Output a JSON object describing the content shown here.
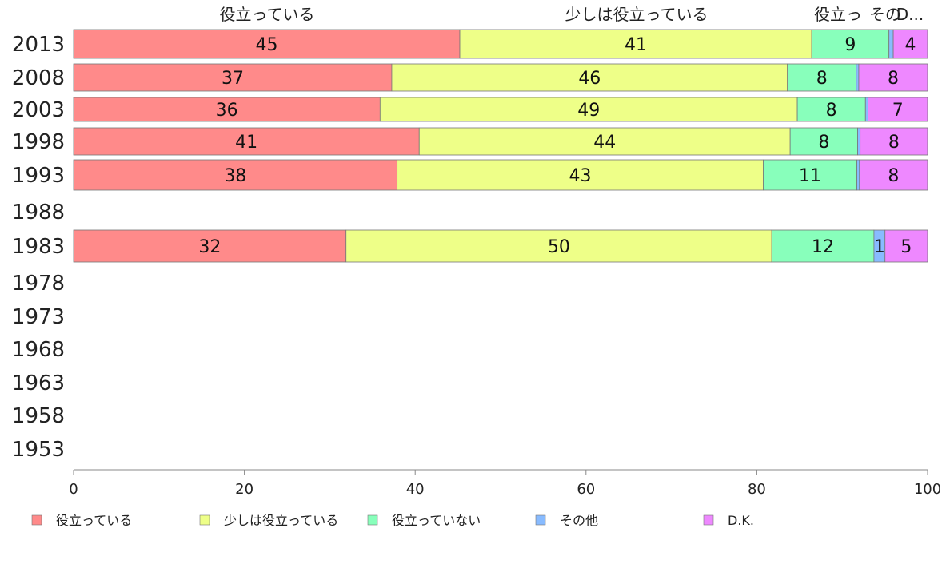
{
  "chart_data": {
    "type": "bar",
    "orientation": "horizontal",
    "stacked": true,
    "categories": [
      "2013",
      "2008",
      "2003",
      "1998",
      "1993",
      "1988",
      "1983",
      "1978",
      "1973",
      "1968",
      "1963",
      "1958",
      "1953"
    ],
    "series": [
      {
        "name": "役立っている",
        "color": "#ff8a8a",
        "values": [
          45,
          37,
          36,
          41,
          38,
          null,
          32,
          null,
          null,
          null,
          null,
          null,
          null
        ]
      },
      {
        "name": "少しは役立っている",
        "color": "#eeff88",
        "values": [
          41,
          46,
          49,
          44,
          43,
          null,
          50,
          null,
          null,
          null,
          null,
          null,
          null
        ]
      },
      {
        "name": "役立っていない",
        "color": "#88ffbb",
        "values": [
          9,
          8,
          8,
          8,
          11,
          null,
          12,
          null,
          null,
          null,
          null,
          null,
          null
        ]
      },
      {
        "name": "その他",
        "color": "#88bbff",
        "values": [
          0.5,
          0.3,
          0.3,
          0.3,
          0.3,
          null,
          1.3,
          null,
          null,
          null,
          null,
          null,
          null
        ]
      },
      {
        "name": "D.K.",
        "color": "#ee88ff",
        "values": [
          4,
          8,
          7,
          8,
          8,
          null,
          5,
          null,
          null,
          null,
          null,
          null,
          null
        ]
      }
    ],
    "data_labels": [
      [
        "45",
        "41",
        "9",
        "",
        "4"
      ],
      [
        "37",
        "46",
        "8",
        "",
        "8"
      ],
      [
        "36",
        "49",
        "8",
        "",
        "7"
      ],
      [
        "41",
        "44",
        "8",
        "",
        "8"
      ],
      [
        "38",
        "43",
        "11",
        "",
        "8"
      ],
      [
        "",
        "",
        "",
        "",
        ""
      ],
      [
        "32",
        "50",
        "12",
        "1",
        "5"
      ],
      [
        "",
        "",
        "",
        "",
        ""
      ],
      [
        "",
        "",
        "",
        "",
        ""
      ],
      [
        "",
        "",
        "",
        "",
        ""
      ],
      [
        "",
        "",
        "",
        "",
        ""
      ],
      [
        "",
        "",
        "",
        "",
        ""
      ],
      [
        "",
        "",
        "",
        "",
        ""
      ]
    ],
    "top_headers": [
      "役立っている",
      "少しは役立っている",
      "役立っ",
      "その",
      "D..."
    ],
    "xlim": [
      0,
      100
    ],
    "xticks": [
      "0",
      "20",
      "40",
      "60",
      "80",
      "100"
    ],
    "legend_position": "bottom",
    "grid": false
  }
}
